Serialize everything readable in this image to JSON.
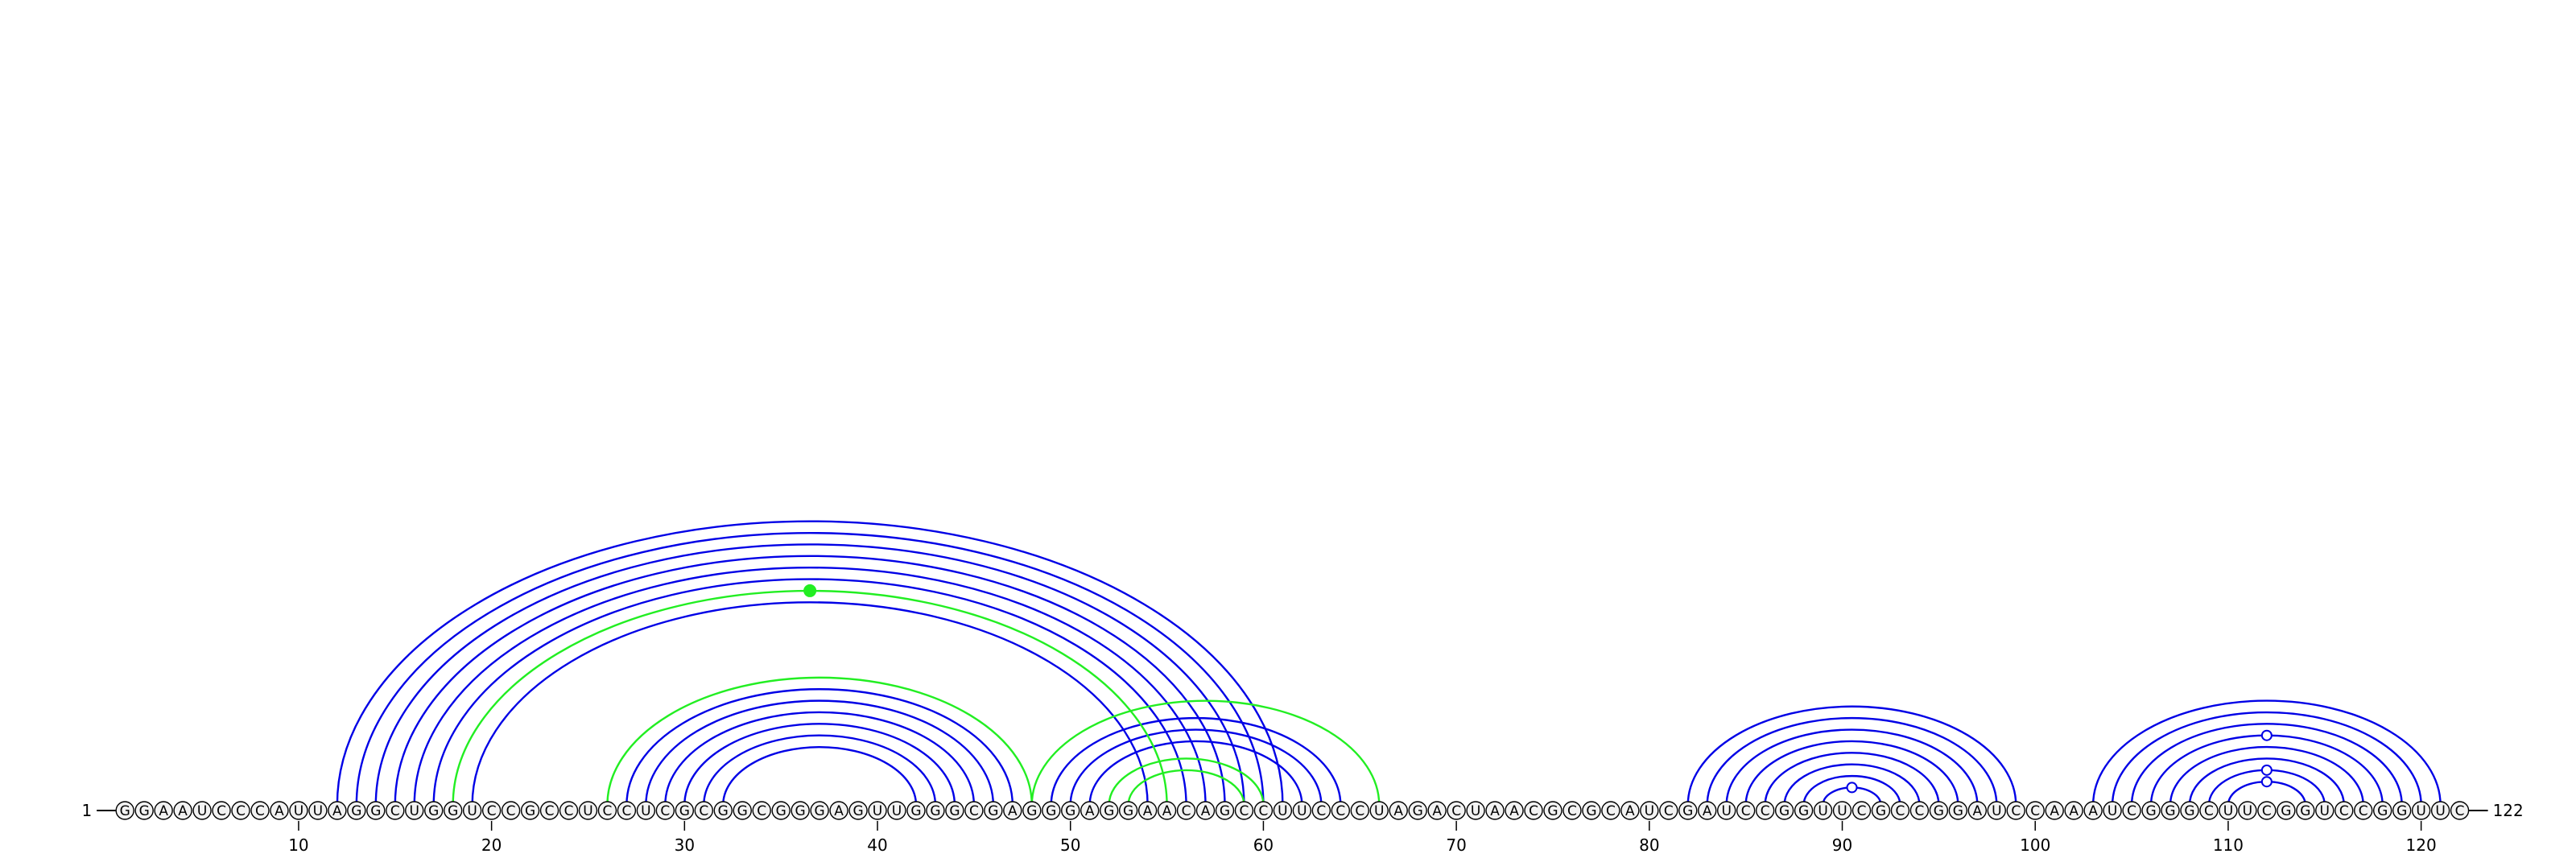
{
  "sequence": "GGAAUCCCAUUAGGCUGGUCCGCCUCCUCGCGGCGGGAGUUGGGCGAGGGAGGAACAGCCUUCCCUAGACUAACGCGCAUCGAUCCGGUUCGCCGGAUCCAAAUCGGGCUUCGGUCCGGUUC",
  "start_label": "1",
  "end_label": "122",
  "ticks": [
    10,
    20,
    30,
    40,
    50,
    60,
    70,
    80,
    90,
    100,
    110,
    120
  ],
  "colors": {
    "primary": "#0000e6",
    "secondary": "#22ee22",
    "nucleotide_fill": "#f2f2f2"
  },
  "arc_sets": [
    {
      "color": "primary",
      "pairs": [
        [
          12,
          61
        ],
        [
          13,
          60
        ],
        [
          14,
          59
        ],
        [
          15,
          58
        ],
        [
          16,
          57
        ],
        [
          17,
          56
        ],
        [
          19,
          54
        ],
        [
          27,
          47
        ],
        [
          28,
          46
        ],
        [
          29,
          45
        ],
        [
          30,
          44
        ],
        [
          31,
          43
        ],
        [
          32,
          42
        ],
        [
          49,
          64
        ],
        [
          50,
          63
        ],
        [
          51,
          62
        ],
        [
          82,
          99
        ],
        [
          83,
          98
        ],
        [
          84,
          97
        ],
        [
          85,
          96
        ],
        [
          86,
          95
        ],
        [
          87,
          94
        ],
        [
          88,
          93
        ],
        [
          89,
          92
        ],
        [
          103,
          121
        ],
        [
          104,
          120
        ],
        [
          105,
          119
        ],
        [
          106,
          118
        ],
        [
          107,
          117
        ],
        [
          108,
          116
        ],
        [
          109,
          115
        ],
        [
          110,
          114
        ]
      ]
    },
    {
      "color": "secondary",
      "pairs": [
        [
          18,
          55
        ],
        [
          26,
          48
        ],
        [
          48,
          66
        ],
        [
          52,
          60
        ],
        [
          53,
          59
        ]
      ]
    }
  ],
  "markers": [
    {
      "arc": [
        18,
        55
      ],
      "style": "filled",
      "color": "secondary"
    },
    {
      "arc": [
        89,
        92
      ],
      "style": "open",
      "color": "primary"
    },
    {
      "arc": [
        106,
        118
      ],
      "style": "open",
      "color": "primary"
    },
    {
      "arc": [
        109,
        115
      ],
      "style": "open",
      "color": "primary"
    },
    {
      "arc": [
        110,
        114
      ],
      "style": "open",
      "color": "primary"
    }
  ]
}
